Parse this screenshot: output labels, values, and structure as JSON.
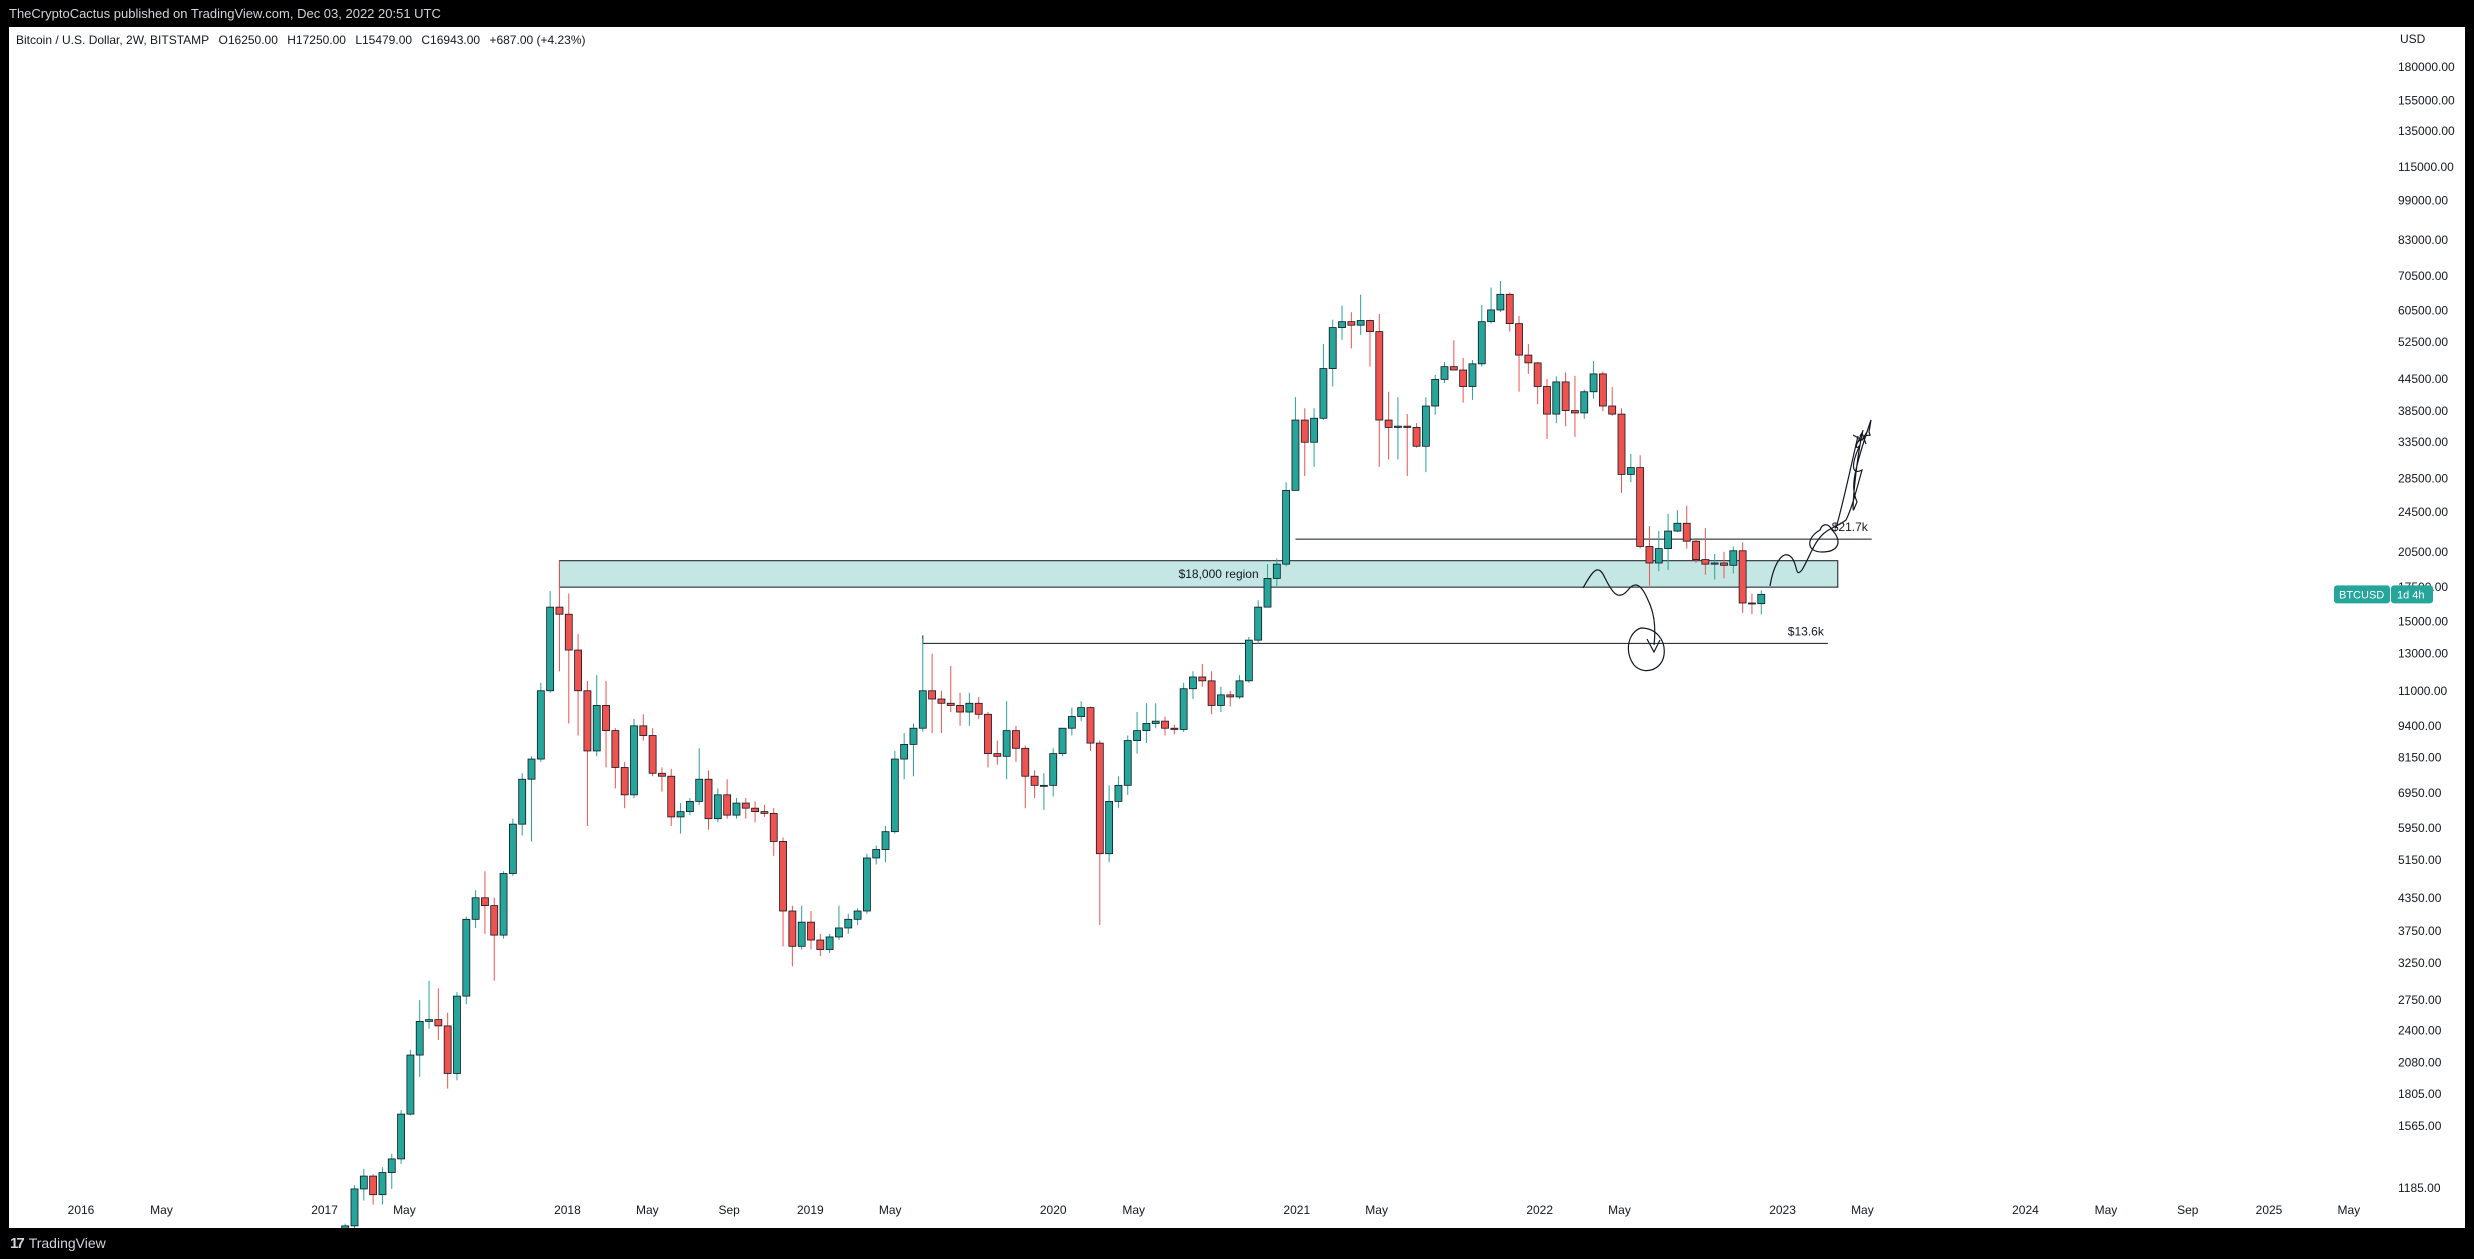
{
  "header": {
    "published": "TheCryptoCactus published on TradingView.com, Dec 03, 2022 20:51 UTC"
  },
  "legend": {
    "symbol": "Bitcoin / U.S. Dollar, 2W, BITSTAMP",
    "open": "O16250.00",
    "high": "H17250.00",
    "low": "L15479.00",
    "close": "C16943.00",
    "change": "+687.00 (+4.23%)"
  },
  "footer": {
    "brand": "TradingView"
  },
  "price_tag": {
    "symbol": "BTCUSD",
    "countdown": "1d 4h",
    "price": 16943
  },
  "colors": {
    "up": "#26a69a",
    "down": "#ef5350",
    "zone": "#b2dfdb",
    "tag": "#26a69a"
  },
  "chart_data": {
    "type": "candlestick",
    "currency": "USD",
    "y_scale": "log",
    "ylim": [
      1100,
      200000
    ],
    "y_ticks": [
      180000,
      155000,
      135000,
      115000,
      99000,
      83000,
      70500,
      60500,
      52500,
      44500,
      38500,
      33500,
      28500,
      24500,
      20500,
      17500,
      15000,
      13000,
      11000,
      9400,
      8150,
      6950,
      5950,
      5150,
      4350,
      3750,
      3250,
      2750,
      2400,
      2080,
      1805,
      1565,
      1185
    ],
    "y_tick_labels": [
      "180000.00",
      "155000.00",
      "135000.00",
      "115000.00",
      "99000.00",
      "83000.00",
      "70500.00",
      "60500.00",
      "52500.00",
      "44500.00",
      "38500.00",
      "33500.00",
      "28500.00",
      "24500.00",
      "20500.00",
      "17500.00",
      "15000.00",
      "13000.00",
      "11000.00",
      "9400.00",
      "8150.00",
      "6950.00",
      "5950.00",
      "5150.00",
      "4350.00",
      "3750.00",
      "3250.00",
      "2750.00",
      "2400.00",
      "2080.00",
      "1805.00",
      "1565.00",
      "1185.00"
    ],
    "x_range": [
      "2015-11-01",
      "2025-10-01"
    ],
    "x_ticks": [
      {
        "date": "2016-01-01",
        "label": "2016",
        "major": true
      },
      {
        "date": "2016-05-01",
        "label": "May",
        "major": false
      },
      {
        "date": "2017-01-01",
        "label": "2017",
        "major": true
      },
      {
        "date": "2017-05-01",
        "label": "May",
        "major": false
      },
      {
        "date": "2018-01-01",
        "label": "2018",
        "major": true
      },
      {
        "date": "2018-05-01",
        "label": "May",
        "major": false
      },
      {
        "date": "2018-09-01",
        "label": "Sep",
        "major": false
      },
      {
        "date": "2019-01-01",
        "label": "2019",
        "major": true
      },
      {
        "date": "2019-05-01",
        "label": "May",
        "major": false
      },
      {
        "date": "2020-01-01",
        "label": "2020",
        "major": true
      },
      {
        "date": "2020-05-01",
        "label": "May",
        "major": false
      },
      {
        "date": "2021-01-01",
        "label": "2021",
        "major": true
      },
      {
        "date": "2021-05-01",
        "label": "May",
        "major": false
      },
      {
        "date": "2022-01-01",
        "label": "2022",
        "major": true
      },
      {
        "date": "2022-05-01",
        "label": "May",
        "major": false
      },
      {
        "date": "2023-01-01",
        "label": "2023",
        "major": true
      },
      {
        "date": "2023-05-01",
        "label": "May",
        "major": false
      },
      {
        "date": "2024-01-01",
        "label": "2024",
        "major": true
      },
      {
        "date": "2024-05-01",
        "label": "May",
        "major": false
      },
      {
        "date": "2024-09-01",
        "label": "Sep",
        "major": false
      },
      {
        "date": "2025-01-01",
        "label": "2025",
        "major": true
      },
      {
        "date": "2025-05-01",
        "label": "May",
        "major": false
      }
    ],
    "candles": [
      [
        "2017-02-01",
        960,
        1010,
        930,
        1000
      ],
      [
        "2017-02-15",
        1000,
        1200,
        990,
        1180
      ],
      [
        "2017-03-01",
        1180,
        1290,
        1120,
        1250
      ],
      [
        "2017-03-15",
        1250,
        1260,
        1100,
        1150
      ],
      [
        "2017-03-29",
        1150,
        1300,
        1100,
        1270
      ],
      [
        "2017-04-12",
        1270,
        1380,
        1180,
        1350
      ],
      [
        "2017-04-26",
        1350,
        1680,
        1320,
        1650
      ],
      [
        "2017-05-10",
        1650,
        2200,
        1640,
        2150
      ],
      [
        "2017-05-24",
        2150,
        2750,
        1950,
        2500
      ],
      [
        "2017-06-07",
        2500,
        3000,
        2420,
        2520
      ],
      [
        "2017-06-21",
        2520,
        2900,
        2300,
        2450
      ],
      [
        "2017-07-05",
        2450,
        2600,
        1850,
        1980
      ],
      [
        "2017-07-19",
        1980,
        2850,
        1920,
        2800
      ],
      [
        "2017-08-02",
        2800,
        4000,
        2700,
        3950
      ],
      [
        "2017-08-16",
        3950,
        4500,
        3800,
        4350
      ],
      [
        "2017-08-30",
        4350,
        4900,
        3700,
        4200
      ],
      [
        "2017-09-13",
        4200,
        4350,
        3000,
        3680
      ],
      [
        "2017-09-27",
        3680,
        4900,
        3620,
        4850
      ],
      [
        "2017-10-11",
        4850,
        6200,
        4800,
        6050
      ],
      [
        "2017-10-25",
        6050,
        7600,
        5750,
        7400
      ],
      [
        "2017-11-08",
        7400,
        8200,
        5600,
        8100
      ],
      [
        "2017-11-22",
        8100,
        11400,
        8000,
        11000
      ],
      [
        "2017-12-06",
        11000,
        17200,
        10900,
        16000
      ],
      [
        "2017-12-20",
        16000,
        19700,
        12000,
        15500
      ],
      [
        "2018-01-03",
        15500,
        17000,
        9500,
        13200
      ],
      [
        "2018-01-17",
        13200,
        14200,
        9000,
        11000
      ],
      [
        "2018-01-31",
        11000,
        11500,
        6000,
        8400
      ],
      [
        "2018-02-14",
        8400,
        11800,
        8200,
        10300
      ],
      [
        "2018-02-28",
        10300,
        11500,
        7800,
        9200
      ],
      [
        "2018-03-14",
        9200,
        9300,
        7100,
        7800
      ],
      [
        "2018-03-28",
        7800,
        8000,
        6500,
        6900
      ],
      [
        "2018-04-11",
        6900,
        9700,
        6800,
        9400
      ],
      [
        "2018-04-25",
        9400,
        9900,
        8800,
        9000
      ],
      [
        "2018-05-09",
        9000,
        9300,
        7500,
        7600
      ],
      [
        "2018-05-23",
        7600,
        7800,
        7000,
        7500
      ],
      [
        "2018-06-06",
        7500,
        7750,
        6000,
        6250
      ],
      [
        "2018-06-20",
        6250,
        6650,
        5800,
        6400
      ],
      [
        "2018-07-04",
        6400,
        6800,
        6300,
        6700
      ],
      [
        "2018-07-18",
        6700,
        8500,
        6600,
        7400
      ],
      [
        "2018-08-01",
        7400,
        7700,
        5900,
        6200
      ],
      [
        "2018-08-15",
        6200,
        7100,
        6100,
        6900
      ],
      [
        "2018-08-29",
        6900,
        7400,
        6200,
        6300
      ],
      [
        "2018-09-12",
        6300,
        6800,
        6200,
        6650
      ],
      [
        "2018-09-26",
        6650,
        6800,
        6200,
        6500
      ],
      [
        "2018-10-10",
        6500,
        6700,
        6100,
        6400
      ],
      [
        "2018-10-24",
        6400,
        6600,
        6250,
        6350
      ],
      [
        "2018-11-07",
        6350,
        6500,
        5250,
        5600
      ],
      [
        "2018-11-21",
        5600,
        5700,
        3500,
        4100
      ],
      [
        "2018-12-05",
        4100,
        4200,
        3200,
        3500
      ],
      [
        "2018-12-19",
        3500,
        4200,
        3450,
        3900
      ],
      [
        "2019-01-02",
        3900,
        4100,
        3450,
        3600
      ],
      [
        "2019-01-16",
        3600,
        3700,
        3350,
        3450
      ],
      [
        "2019-01-30",
        3450,
        3700,
        3400,
        3650
      ],
      [
        "2019-02-13",
        3650,
        4200,
        3600,
        3800
      ],
      [
        "2019-02-27",
        3800,
        4050,
        3700,
        3950
      ],
      [
        "2019-03-13",
        3950,
        4150,
        3850,
        4100
      ],
      [
        "2019-03-27",
        4100,
        5300,
        4050,
        5200
      ],
      [
        "2019-04-10",
        5200,
        5500,
        5050,
        5400
      ],
      [
        "2019-04-24",
        5400,
        6000,
        5100,
        5850
      ],
      [
        "2019-05-08",
        5850,
        8400,
        5800,
        8100
      ],
      [
        "2019-05-22",
        8100,
        9100,
        7400,
        8650
      ],
      [
        "2019-06-05",
        8650,
        9500,
        7500,
        9300
      ],
      [
        "2019-06-19",
        9300,
        13900,
        9150,
        11000
      ],
      [
        "2019-07-03",
        11000,
        13000,
        9100,
        10600
      ],
      [
        "2019-07-17",
        10600,
        11000,
        9100,
        10400
      ],
      [
        "2019-07-31",
        10400,
        12300,
        10000,
        10300
      ],
      [
        "2019-08-14",
        10300,
        10900,
        9400,
        10000
      ],
      [
        "2019-08-28",
        10000,
        10900,
        9400,
        10400
      ],
      [
        "2019-09-11",
        10400,
        10700,
        9700,
        9900
      ],
      [
        "2019-09-25",
        9900,
        10000,
        7800,
        8300
      ],
      [
        "2019-10-09",
        8300,
        8800,
        7900,
        8200
      ],
      [
        "2019-10-23",
        8200,
        10500,
        7400,
        9200
      ],
      [
        "2019-11-06",
        9200,
        9400,
        8000,
        8500
      ],
      [
        "2019-11-20",
        8500,
        8600,
        6500,
        7500
      ],
      [
        "2019-12-04",
        7500,
        7700,
        6800,
        7200
      ],
      [
        "2019-12-18",
        7200,
        7600,
        6450,
        7200
      ],
      [
        "2020-01-01",
        7200,
        8500,
        6850,
        8300
      ],
      [
        "2020-01-15",
        8300,
        9200,
        8200,
        9300
      ],
      [
        "2020-01-29",
        9300,
        10200,
        9000,
        9800
      ],
      [
        "2020-02-12",
        9800,
        10500,
        9600,
        10200
      ],
      [
        "2020-02-26",
        10200,
        10250,
        8400,
        8700
      ],
      [
        "2020-03-11",
        8700,
        8800,
        3850,
        5300
      ],
      [
        "2020-03-25",
        5300,
        7200,
        5100,
        6700
      ],
      [
        "2020-04-08",
        6700,
        7500,
        6500,
        7200
      ],
      [
        "2020-04-22",
        7200,
        9000,
        6900,
        8800
      ],
      [
        "2020-05-06",
        8800,
        10000,
        8300,
        9200
      ],
      [
        "2020-05-20",
        9200,
        10400,
        8700,
        9500
      ],
      [
        "2020-06-03",
        9500,
        10400,
        9300,
        9600
      ],
      [
        "2020-06-17",
        9600,
        9800,
        9000,
        9300
      ],
      [
        "2020-07-01",
        9300,
        9450,
        9050,
        9250
      ],
      [
        "2020-07-15",
        9250,
        11400,
        9150,
        11100
      ],
      [
        "2020-07-29",
        11100,
        12000,
        10600,
        11700
      ],
      [
        "2020-08-12",
        11700,
        12400,
        11200,
        11500
      ],
      [
        "2020-08-26",
        11500,
        12000,
        9900,
        10300
      ],
      [
        "2020-09-09",
        10300,
        11200,
        10000,
        10800
      ],
      [
        "2020-09-23",
        10800,
        11000,
        10250,
        10700
      ],
      [
        "2020-10-07",
        10700,
        11800,
        10600,
        11500
      ],
      [
        "2020-10-21",
        11500,
        14000,
        11400,
        13800
      ],
      [
        "2020-11-04",
        13800,
        16500,
        13600,
        16000
      ],
      [
        "2020-11-18",
        16000,
        19400,
        16000,
        18200
      ],
      [
        "2020-12-02",
        18200,
        19900,
        17600,
        19400
      ],
      [
        "2020-12-16",
        19400,
        28000,
        19200,
        27000
      ],
      [
        "2020-12-30",
        27000,
        41000,
        27000,
        37000
      ],
      [
        "2021-01-13",
        37000,
        39000,
        28800,
        33500
      ],
      [
        "2021-01-27",
        33500,
        39000,
        30000,
        37300
      ],
      [
        "2021-02-10",
        37300,
        52000,
        37000,
        46600
      ],
      [
        "2021-02-24",
        46600,
        58000,
        43000,
        56000
      ],
      [
        "2021-03-10",
        56000,
        61800,
        53000,
        57500
      ],
      [
        "2021-03-24",
        57500,
        60000,
        51000,
        56600
      ],
      [
        "2021-04-07",
        56600,
        64900,
        54200,
        57800
      ],
      [
        "2021-04-21",
        57800,
        58000,
        47000,
        55000
      ],
      [
        "2021-05-05",
        55000,
        59500,
        30000,
        37000
      ],
      [
        "2021-05-19",
        37000,
        42000,
        31000,
        35800
      ],
      [
        "2021-06-02",
        35800,
        41000,
        31000,
        36000
      ],
      [
        "2021-06-16",
        36000,
        38000,
        28800,
        35800
      ],
      [
        "2021-06-30",
        35800,
        36500,
        32700,
        32900
      ],
      [
        "2021-07-14",
        32900,
        41000,
        29300,
        39400
      ],
      [
        "2021-07-28",
        39400,
        45300,
        37900,
        44400
      ],
      [
        "2021-08-11",
        44400,
        48000,
        43700,
        47000
      ],
      [
        "2021-08-25",
        47000,
        52900,
        46300,
        46300
      ],
      [
        "2021-09-08",
        46300,
        48900,
        40000,
        43000
      ],
      [
        "2021-09-22",
        43000,
        48400,
        40500,
        47600
      ],
      [
        "2021-10-06",
        47600,
        62000,
        47000,
        57500
      ],
      [
        "2021-10-20",
        57500,
        67000,
        57000,
        60600
      ],
      [
        "2021-11-03",
        60600,
        69000,
        60000,
        65000
      ],
      [
        "2021-11-17",
        65000,
        65500,
        55000,
        57000
      ],
      [
        "2021-12-01",
        57000,
        59000,
        42000,
        49500
      ],
      [
        "2021-12-15",
        49500,
        52000,
        45500,
        47800
      ],
      [
        "2021-12-29",
        47800,
        48000,
        39700,
        43000
      ],
      [
        "2022-01-12",
        43000,
        44500,
        34000,
        38000
      ],
      [
        "2022-01-26",
        38000,
        45000,
        36500,
        43900
      ],
      [
        "2022-02-09",
        43900,
        45800,
        36000,
        38600
      ],
      [
        "2022-02-23",
        38600,
        45100,
        34300,
        38200
      ],
      [
        "2022-03-09",
        38200,
        42400,
        37200,
        42000
      ],
      [
        "2022-03-23",
        42000,
        48200,
        40700,
        45500
      ],
      [
        "2022-04-06",
        45500,
        46000,
        38500,
        39400
      ],
      [
        "2022-04-20",
        39400,
        42900,
        37700,
        38000
      ],
      [
        "2022-05-04",
        38000,
        39000,
        26700,
        29000
      ],
      [
        "2022-05-18",
        29000,
        31800,
        28000,
        29900
      ],
      [
        "2022-06-01",
        29900,
        31600,
        20800,
        21000
      ],
      [
        "2022-06-15",
        21000,
        23000,
        17600,
        19500
      ],
      [
        "2022-06-29",
        19500,
        22500,
        18800,
        20800
      ],
      [
        "2022-07-13",
        20800,
        24300,
        18900,
        22500
      ],
      [
        "2022-07-27",
        22500,
        24700,
        22400,
        23300
      ],
      [
        "2022-08-10",
        23300,
        25200,
        20800,
        21500
      ],
      [
        "2022-08-24",
        21500,
        21800,
        19500,
        19800
      ],
      [
        "2022-09-07",
        19800,
        22800,
        18500,
        19400
      ],
      [
        "2022-09-21",
        19400,
        20300,
        18100,
        19500
      ],
      [
        "2022-10-05",
        19500,
        20500,
        18200,
        19300
      ],
      [
        "2022-10-19",
        19300,
        21000,
        18600,
        20600
      ],
      [
        "2022-11-02",
        20600,
        21400,
        15600,
        16300
      ],
      [
        "2022-11-16",
        16300,
        17000,
        15500,
        16250
      ],
      [
        "2022-11-30",
        16250,
        17250,
        15479,
        16943
      ]
    ],
    "zones": [
      {
        "label": "$18,000 region",
        "from": "2017-12-20",
        "to": "2023-03-25",
        "low": 17500,
        "high": 19700
      }
    ],
    "levels": [
      {
        "label": "$21.7k",
        "price": 21700,
        "from": "2020-12-30",
        "to": "2023-05-15"
      },
      {
        "label": "$13.6k",
        "price": 13600,
        "from": "2019-06-19",
        "to": "2023-03-10"
      }
    ]
  }
}
